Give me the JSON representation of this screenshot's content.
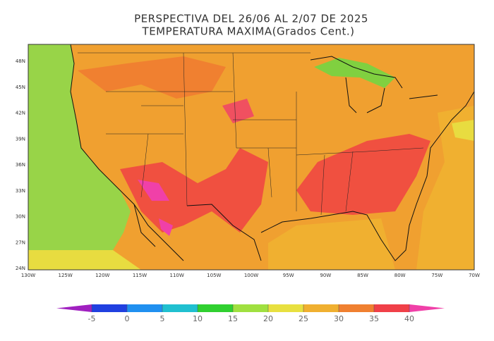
{
  "header": {
    "title": "PERSPECTIVA DEL 26/06 AL 2/07 DE 2025",
    "subtitle": "TEMPERATURA MAXIMA(Grados Cent.)"
  },
  "map": {
    "lat_labels": [
      "48N",
      "45N",
      "42N",
      "39N",
      "36N",
      "33N",
      "30N",
      "27N",
      "24N"
    ],
    "lon_labels": [
      "130W",
      "125W",
      "120W",
      "115W",
      "110W",
      "105W",
      "100W",
      "95W",
      "90W",
      "85W",
      "80W",
      "75W",
      "70W"
    ]
  },
  "colorbar": {
    "ticks": [
      -5,
      0,
      5,
      10,
      15,
      20,
      25,
      30,
      35,
      40
    ],
    "colors": [
      "#a020c0",
      "#2040e0",
      "#2090f0",
      "#20c0d0",
      "#30d030",
      "#a0e040",
      "#e8e040",
      "#f0b030",
      "#f08030",
      "#f04048",
      "#f040a8"
    ]
  }
}
